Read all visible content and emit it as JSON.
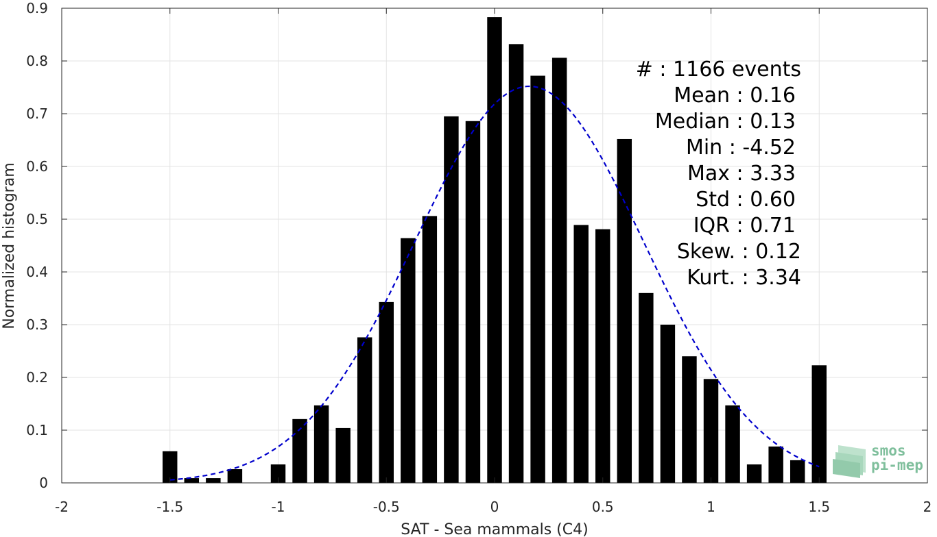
{
  "chart_data": {
    "type": "bar",
    "xlabel": "SAT - Sea mammals (C4)",
    "ylabel": "Normalized histogram",
    "xlim": [
      -2,
      2
    ],
    "ylim": [
      0,
      0.9
    ],
    "xticks": [
      -2,
      -1.5,
      -1,
      -0.5,
      0,
      0.5,
      1,
      1.5,
      2
    ],
    "xtick_labels": [
      "-2",
      "-1.5",
      "-1",
      "-0.5",
      "0",
      "0.5",
      "1",
      "1.5",
      "2"
    ],
    "yticks": [
      0,
      0.1,
      0.2,
      0.3,
      0.4,
      0.5,
      0.6,
      0.7,
      0.8,
      0.9
    ],
    "ytick_labels": [
      "0",
      "0.1",
      "0.2",
      "0.3",
      "0.4",
      "0.5",
      "0.6",
      "0.7",
      "0.8",
      "0.9"
    ],
    "grid": true,
    "bar_color": "#000000",
    "bin_width": 0.1,
    "bins": [
      {
        "x": -1.5,
        "y": 0.06
      },
      {
        "x": -1.4,
        "y": 0.009
      },
      {
        "x": -1.3,
        "y": 0.009
      },
      {
        "x": -1.2,
        "y": 0.026
      },
      {
        "x": -1.0,
        "y": 0.035
      },
      {
        "x": -0.9,
        "y": 0.121
      },
      {
        "x": -0.8,
        "y": 0.147
      },
      {
        "x": -0.7,
        "y": 0.104
      },
      {
        "x": -0.6,
        "y": 0.276
      },
      {
        "x": -0.5,
        "y": 0.343
      },
      {
        "x": -0.4,
        "y": 0.464
      },
      {
        "x": -0.3,
        "y": 0.506
      },
      {
        "x": -0.2,
        "y": 0.695
      },
      {
        "x": -0.1,
        "y": 0.686
      },
      {
        "x": 0.0,
        "y": 0.883
      },
      {
        "x": 0.1,
        "y": 0.832
      },
      {
        "x": 0.2,
        "y": 0.772
      },
      {
        "x": 0.3,
        "y": 0.806
      },
      {
        "x": 0.4,
        "y": 0.489
      },
      {
        "x": 0.5,
        "y": 0.481
      },
      {
        "x": 0.6,
        "y": 0.652
      },
      {
        "x": 0.7,
        "y": 0.36
      },
      {
        "x": 0.8,
        "y": 0.3
      },
      {
        "x": 0.9,
        "y": 0.24
      },
      {
        "x": 1.0,
        "y": 0.197
      },
      {
        "x": 1.1,
        "y": 0.147
      },
      {
        "x": 1.2,
        "y": 0.035
      },
      {
        "x": 1.3,
        "y": 0.069
      },
      {
        "x": 1.4,
        "y": 0.043
      },
      {
        "x": 1.5,
        "y": 0.223
      }
    ],
    "fit_curve": {
      "style": "dashed",
      "color": "#0000cc",
      "mean": 0.16,
      "std": 0.53,
      "peak": 0.752,
      "x_range": [
        -1.5,
        1.5
      ]
    },
    "stats": [
      {
        "label": "#  : 1166 events"
      },
      {
        "label": "Mean : 0.16"
      },
      {
        "label": "Median : 0.13"
      },
      {
        "label": "Min : -4.52"
      },
      {
        "label": "Max : 3.33"
      },
      {
        "label": "Std : 0.60"
      },
      {
        "label": "IQR : 0.71"
      },
      {
        "label": "Skew. : 0.12"
      },
      {
        "label": "Kurt. : 3.34"
      }
    ]
  },
  "logo": {
    "line1": "smos",
    "line2": "pi-mep",
    "color": "#7fbf9c"
  }
}
